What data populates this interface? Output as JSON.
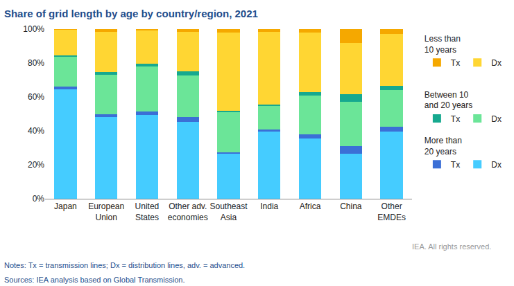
{
  "chart_data": {
    "type": "bar",
    "title": "Share of grid length by age by country/region, 2021",
    "categories": [
      "Japan",
      "European\nUnion",
      "United\nStates",
      "Other adv.\neconomies",
      "Southeast\nAsia",
      "India",
      "Africa",
      "China",
      "Other\nEMDEs"
    ],
    "series": [
      {
        "name": "Dx",
        "group": "More than\n20 years",
        "color": "#45CCFF",
        "values": [
          64.5,
          48,
          49.5,
          45.5,
          26.5,
          39.5,
          35.5,
          26.5,
          39.5
        ]
      },
      {
        "name": "Tx",
        "group": "More than\n20 years",
        "color": "#3B6FD6",
        "values": [
          1.5,
          2,
          2,
          2.5,
          1,
          1.5,
          2.5,
          4.5,
          3
        ]
      },
      {
        "name": "Dx",
        "group": "Between 10\nand 20 years",
        "color": "#6BE598",
        "values": [
          17.5,
          23,
          26.5,
          24.5,
          23.5,
          13.5,
          23,
          26,
          21.5
        ]
      },
      {
        "name": "Tx",
        "group": "Between 10\nand 20 years",
        "color": "#16A98F",
        "values": [
          1,
          1.5,
          1.5,
          2.5,
          1,
          1,
          2,
          4.5,
          2.5
        ]
      },
      {
        "name": "Dx",
        "group": "Less than\n10 years",
        "color": "#FFD633",
        "values": [
          15,
          24,
          19.5,
          23.5,
          46,
          43,
          35,
          30.5,
          30.5
        ]
      },
      {
        "name": "Tx",
        "group": "Less than\n10 years",
        "color": "#F5A800",
        "values": [
          0.5,
          1.5,
          1,
          1.5,
          2,
          1.5,
          2,
          8,
          3
        ]
      }
    ],
    "stacked": true,
    "ylim": [
      0,
      100
    ],
    "yticks": [
      {
        "value": 0,
        "label": "0%"
      },
      {
        "value": 20,
        "label": "20%"
      },
      {
        "value": 40,
        "label": "40%"
      },
      {
        "value": 60,
        "label": "60%"
      },
      {
        "value": 80,
        "label": "80%"
      },
      {
        "value": 100,
        "label": "100%"
      }
    ],
    "grid": false,
    "legend": "right",
    "credit": "IEA. All rights reserved.",
    "notes": "Notes: Tx = transmission lines; Dx = distribution lines, adv. = advanced.",
    "sources": "Sources: IEA analysis based on Global Transmission."
  }
}
